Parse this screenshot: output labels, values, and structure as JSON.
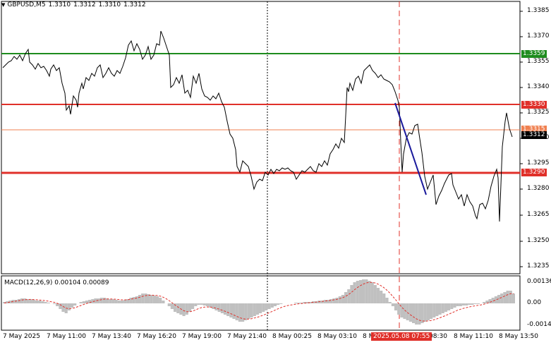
{
  "header": {
    "arrow": "▼",
    "symbol": "GBPUSD,M5",
    "open": "1.3310",
    "high": "1.3312",
    "low": "1.3310",
    "close": "1.3312"
  },
  "macd": {
    "label": "MACD(12,26,9) 0.00104 0.00089",
    "ticks": [
      "0.00136",
      "0.00",
      "-0.0014"
    ]
  },
  "price_axis": {
    "ticks": [
      "1.3385",
      "1.3370",
      "1.3355",
      "1.3340",
      "1.3325",
      "1.3310",
      "1.3295",
      "1.3280",
      "1.3265",
      "1.3250",
      "1.3235"
    ]
  },
  "level_tags": {
    "green": "1.3359",
    "upper_red": "1.3330",
    "orange": "1.3315",
    "current": "1.3312",
    "lower_red": "1.3290"
  },
  "time_axis": {
    "ticks": [
      "7 May 2025",
      "7 May 11:00",
      "7 May 13:40",
      "7 May 16:20",
      "7 May 19:00",
      "7 May 21:40",
      "8 May 00:25",
      "8 May 03:10",
      "8 M",
      "08:30",
      "8 May 11:10",
      "8 May 13:50"
    ],
    "highlight": "2025.05.08 07:55"
  },
  "colors": {
    "price_line": "#000000",
    "green_level": "#1e8c1e",
    "red_level": "#e0302a",
    "orange_level": "#f08050",
    "trend_line": "#1a1a9c",
    "macd_hist": "#c0c0c0",
    "macd_signal": "#e0302a"
  }
}
